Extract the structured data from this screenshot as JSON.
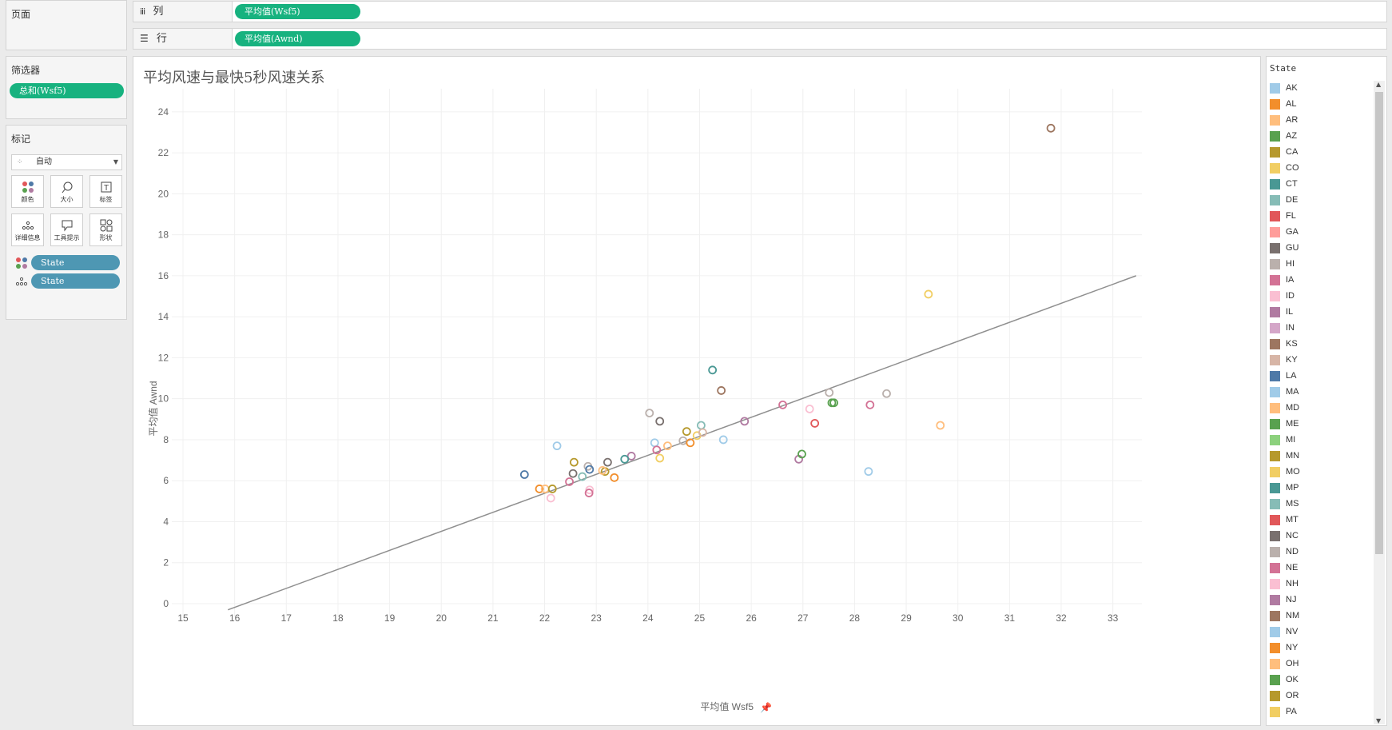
{
  "pages_panel": {
    "title": "页面"
  },
  "filters_panel": {
    "title": "筛选器",
    "pill": "总和(Wsf5)"
  },
  "marks_panel": {
    "title": "标记",
    "mark_type": "自动",
    "cards": [
      "颜色",
      "大小",
      "标签",
      "详细信息",
      "工具提示",
      "形状"
    ],
    "pills": [
      {
        "icon": "color-dots-icon",
        "label": "State"
      },
      {
        "icon": "detail-dots-icon",
        "label": "State"
      }
    ]
  },
  "columns_shelf": {
    "label": "列",
    "icon": "columns-icon",
    "pill": "平均值(Wsf5)"
  },
  "rows_shelf": {
    "label": "行",
    "icon": "rows-icon",
    "pill": "平均值(Awnd)"
  },
  "legend": {
    "title": "State",
    "items": [
      {
        "label": "AK",
        "color": "#a0cbe8"
      },
      {
        "label": "AL",
        "color": "#f28e2b"
      },
      {
        "label": "AR",
        "color": "#ffbe7d"
      },
      {
        "label": "AZ",
        "color": "#59a14f"
      },
      {
        "label": "CA",
        "color": "#b6992d"
      },
      {
        "label": "CO",
        "color": "#f1ce63"
      },
      {
        "label": "CT",
        "color": "#499894"
      },
      {
        "label": "DE",
        "color": "#86bcb6"
      },
      {
        "label": "FL",
        "color": "#e15759"
      },
      {
        "label": "GA",
        "color": "#ff9d9a"
      },
      {
        "label": "GU",
        "color": "#79706e"
      },
      {
        "label": "HI",
        "color": "#bab0ac"
      },
      {
        "label": "IA",
        "color": "#d37295"
      },
      {
        "label": "ID",
        "color": "#fabfd2"
      },
      {
        "label": "IL",
        "color": "#b07aa1"
      },
      {
        "label": "IN",
        "color": "#d4a6c8"
      },
      {
        "label": "KS",
        "color": "#9d7660"
      },
      {
        "label": "KY",
        "color": "#d7b5a6"
      },
      {
        "label": "LA",
        "color": "#4e79a7"
      },
      {
        "label": "MA",
        "color": "#a0cbe8"
      },
      {
        "label": "MD",
        "color": "#ffbe7d"
      },
      {
        "label": "ME",
        "color": "#59a14f"
      },
      {
        "label": "MI",
        "color": "#8cd17d"
      },
      {
        "label": "MN",
        "color": "#b6992d"
      },
      {
        "label": "MO",
        "color": "#f1ce63"
      },
      {
        "label": "MP",
        "color": "#499894"
      },
      {
        "label": "MS",
        "color": "#86bcb6"
      },
      {
        "label": "MT",
        "color": "#e15759"
      },
      {
        "label": "NC",
        "color": "#79706e"
      },
      {
        "label": "ND",
        "color": "#bab0ac"
      },
      {
        "label": "NE",
        "color": "#d37295"
      },
      {
        "label": "NH",
        "color": "#fabfd2"
      },
      {
        "label": "NJ",
        "color": "#b07aa1"
      },
      {
        "label": "NM",
        "color": "#9d7660"
      },
      {
        "label": "NV",
        "color": "#a0cbe8"
      },
      {
        "label": "NY",
        "color": "#f28e2b"
      },
      {
        "label": "OH",
        "color": "#ffbe7d"
      },
      {
        "label": "OK",
        "color": "#59a14f"
      },
      {
        "label": "OR",
        "color": "#b6992d"
      },
      {
        "label": "PA",
        "color": "#f1ce63"
      }
    ]
  },
  "chart_data": {
    "type": "scatter",
    "title": "平均风速与最快5秒风速关系",
    "xlabel": "平均值 Wsf5",
    "ylabel": "平均值 Awnd",
    "xlim": [
      15,
      33.5
    ],
    "ylim": [
      0,
      24.5
    ],
    "x_ticks": [
      15,
      16,
      17,
      18,
      19,
      20,
      21,
      22,
      23,
      24,
      25,
      26,
      27,
      28,
      29,
      30,
      31,
      32,
      33
    ],
    "y_ticks": [
      0,
      2,
      4,
      6,
      8,
      10,
      12,
      14,
      16,
      18,
      20,
      22,
      24
    ],
    "grid": true,
    "legend_position": "right",
    "trend_line": {
      "x": [
        15.87,
        33.45
      ],
      "y": [
        -0.3,
        16.0
      ]
    },
    "points": [
      {
        "x": 31.8,
        "y": 23.2,
        "color": "#9d7660"
      },
      {
        "x": 29.43,
        "y": 15.1,
        "color": "#f1ce63"
      },
      {
        "x": 29.66,
        "y": 8.7,
        "color": "#ffbe7d"
      },
      {
        "x": 25.25,
        "y": 11.4,
        "color": "#499894"
      },
      {
        "x": 25.42,
        "y": 10.4,
        "color": "#9d7660"
      },
      {
        "x": 27.51,
        "y": 10.3,
        "color": "#bab0ac"
      },
      {
        "x": 28.62,
        "y": 10.25,
        "color": "#bab0ac"
      },
      {
        "x": 27.56,
        "y": 9.8,
        "color": "#59a14f"
      },
      {
        "x": 27.6,
        "y": 9.8,
        "color": "#59a14f"
      },
      {
        "x": 26.61,
        "y": 9.7,
        "color": "#d37295"
      },
      {
        "x": 28.3,
        "y": 9.7,
        "color": "#d37295"
      },
      {
        "x": 27.13,
        "y": 9.5,
        "color": "#fabfd2"
      },
      {
        "x": 24.03,
        "y": 9.3,
        "color": "#bab0ac"
      },
      {
        "x": 24.23,
        "y": 8.9,
        "color": "#79706e"
      },
      {
        "x": 25.87,
        "y": 8.9,
        "color": "#b07aa1"
      },
      {
        "x": 27.23,
        "y": 8.8,
        "color": "#e15759"
      },
      {
        "x": 25.03,
        "y": 8.7,
        "color": "#86bcb6"
      },
      {
        "x": 24.75,
        "y": 8.4,
        "color": "#b6992d"
      },
      {
        "x": 24.95,
        "y": 8.2,
        "color": "#f1ce63"
      },
      {
        "x": 25.06,
        "y": 8.35,
        "color": "#d7b5a6"
      },
      {
        "x": 25.46,
        "y": 8.0,
        "color": "#a0cbe8"
      },
      {
        "x": 24.68,
        "y": 7.95,
        "color": "#bab0ac"
      },
      {
        "x": 24.82,
        "y": 7.85,
        "color": "#f28e2b"
      },
      {
        "x": 24.13,
        "y": 7.85,
        "color": "#a0cbe8"
      },
      {
        "x": 24.38,
        "y": 7.7,
        "color": "#ffbe7d"
      },
      {
        "x": 22.24,
        "y": 7.7,
        "color": "#a0cbe8"
      },
      {
        "x": 24.17,
        "y": 7.5,
        "color": "#d37295"
      },
      {
        "x": 26.92,
        "y": 7.05,
        "color": "#b07aa1"
      },
      {
        "x": 26.98,
        "y": 7.3,
        "color": "#59a14f"
      },
      {
        "x": 23.68,
        "y": 7.2,
        "color": "#b07aa1"
      },
      {
        "x": 24.23,
        "y": 7.1,
        "color": "#f1ce63"
      },
      {
        "x": 23.55,
        "y": 7.05,
        "color": "#499894"
      },
      {
        "x": 22.57,
        "y": 6.9,
        "color": "#b6992d"
      },
      {
        "x": 23.22,
        "y": 6.9,
        "color": "#79706e"
      },
      {
        "x": 22.84,
        "y": 6.7,
        "color": "#bab0ac"
      },
      {
        "x": 22.87,
        "y": 6.55,
        "color": "#4e79a7"
      },
      {
        "x": 23.17,
        "y": 6.45,
        "color": "#b6992d"
      },
      {
        "x": 23.12,
        "y": 6.5,
        "color": "#ffbe7d"
      },
      {
        "x": 22.55,
        "y": 6.35,
        "color": "#79706e"
      },
      {
        "x": 21.61,
        "y": 6.3,
        "color": "#4e79a7"
      },
      {
        "x": 28.27,
        "y": 6.45,
        "color": "#a0cbe8"
      },
      {
        "x": 22.73,
        "y": 6.2,
        "color": "#86bcb6"
      },
      {
        "x": 23.35,
        "y": 6.15,
        "color": "#f28e2b"
      },
      {
        "x": 22.48,
        "y": 5.95,
        "color": "#d37295"
      },
      {
        "x": 21.9,
        "y": 5.6,
        "color": "#f28e2b"
      },
      {
        "x": 22.01,
        "y": 5.6,
        "color": "#ffbe7d"
      },
      {
        "x": 22.15,
        "y": 5.6,
        "color": "#b6992d"
      },
      {
        "x": 22.87,
        "y": 5.55,
        "color": "#fabfd2"
      },
      {
        "x": 22.86,
        "y": 5.4,
        "color": "#d37295"
      },
      {
        "x": 22.12,
        "y": 5.15,
        "color": "#fabfd2"
      }
    ]
  }
}
